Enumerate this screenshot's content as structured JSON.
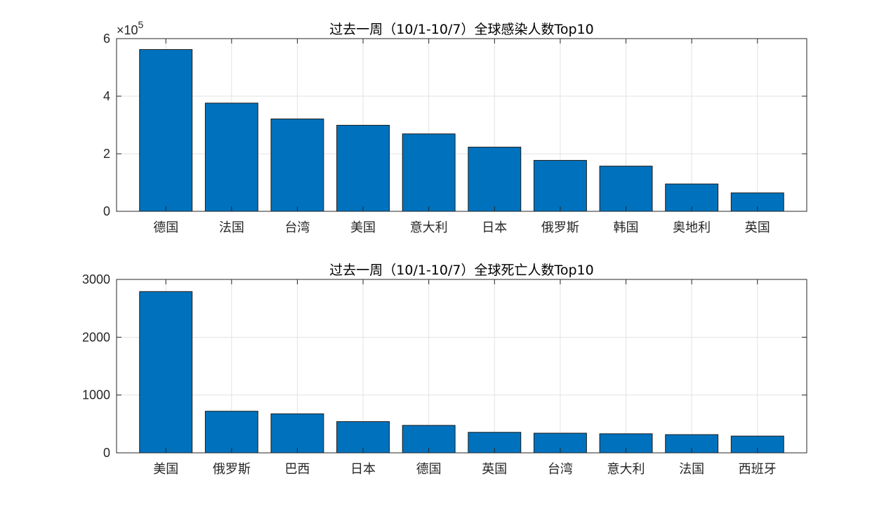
{
  "chart_data": [
    {
      "type": "bar",
      "title": "过去一周（10/1-10/7）全球感染人数Top10",
      "categories": [
        "德国",
        "法国",
        "台湾",
        "美国",
        "意大利",
        "日本",
        "俄罗斯",
        "韩国",
        "奥地利",
        "英国"
      ],
      "values": [
        562000,
        376000,
        321000,
        299000,
        269000,
        223000,
        177000,
        157000,
        95000,
        64000
      ],
      "ylim": [
        0,
        600000
      ],
      "yticks": [
        "0",
        "2",
        "4",
        "6"
      ],
      "exponent_label": "×10",
      "exponent_power": "5",
      "xlabel": "",
      "ylabel": "",
      "grid": true,
      "bar_color": "#0072BD"
    },
    {
      "type": "bar",
      "title": "过去一周（10/1-10/7）全球死亡人数Top10",
      "categories": [
        "美国",
        "俄罗斯",
        "巴西",
        "日本",
        "德国",
        "英国",
        "台湾",
        "意大利",
        "法国",
        "西班牙"
      ],
      "values": [
        2790,
        720,
        675,
        540,
        475,
        355,
        340,
        330,
        315,
        290
      ],
      "ylim": [
        0,
        3000
      ],
      "yticks": [
        "0",
        "1000",
        "2000",
        "3000"
      ],
      "xlabel": "",
      "ylabel": "",
      "grid": true,
      "bar_color": "#0072BD"
    }
  ]
}
